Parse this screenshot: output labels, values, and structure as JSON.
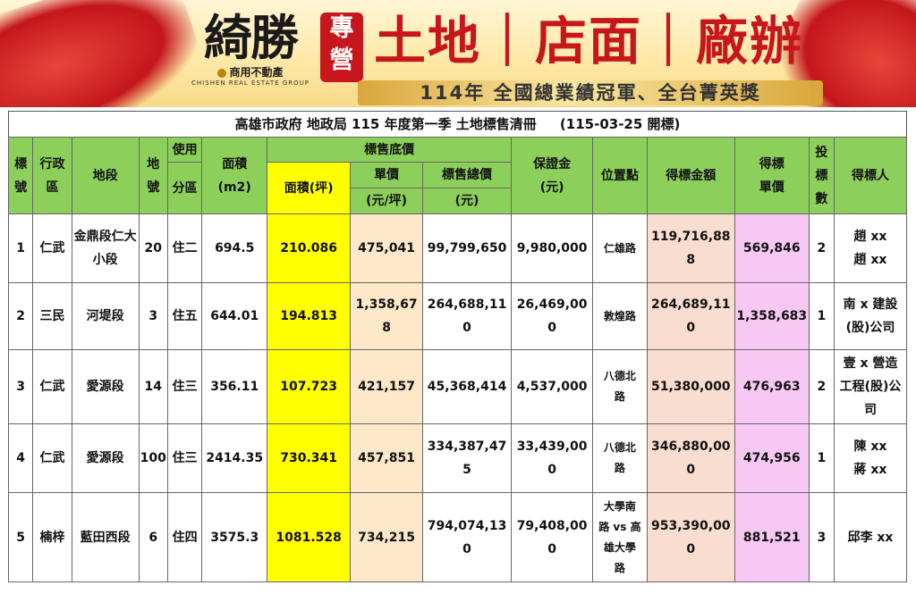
{
  "banner": {
    "logo_text": "綺勝",
    "logo_sub": "商用不動產",
    "logo_eng": "CHISHEN REAL ESTATE GROUP",
    "badge": "專營",
    "headline": "土地｜店面｜廠辦",
    "slogan": "114年 全國總業績冠軍、全台菁英獎",
    "colors": {
      "brand_red": "#c8161d",
      "gold": "#d9a63a"
    }
  },
  "table": {
    "title": "高雄市政府 地政局 115 年度第一季 土地標售清冊     (115-03-25 開標)",
    "headers": {
      "lot_no": "標號",
      "district": "行政區",
      "section": "地段",
      "land_no": "地號",
      "zoning_top": "使用",
      "zoning_bottom": "分區",
      "area_label": "面積",
      "area_unit": "(m2)",
      "reserve_group": "標售底價",
      "ping_area": "面積(坪)",
      "unit_price_label": "單價",
      "unit_price_unit": "(元/坪)",
      "total_label": "標售總價",
      "total_unit": "(元)",
      "deposit_label": "保證金",
      "deposit_unit": "(元)",
      "location": "位置點",
      "winning_amount": "得標金額",
      "winning_unit_top": "得標",
      "winning_unit_bottom": "單價",
      "bids_top": "投",
      "bids_mid": "標",
      "bids_bottom": "數",
      "winner": "得標人"
    },
    "rows": [
      {
        "no": "1",
        "district": "仁武",
        "section": "金鼎段仁大小段",
        "land_no": "20",
        "zoning": "住二",
        "area_m2": "694.5",
        "area_ping": "210.086",
        "unit_price": "475,041",
        "total_price": "99,799,650",
        "deposit": "9,980,000",
        "location": "仁雄路",
        "winning_amount": "119,716,888",
        "winning_unit_price": "569,846",
        "bids": "2",
        "winner_l1": "趙 xx",
        "winner_l2": "趙 xx"
      },
      {
        "no": "2",
        "district": "三民",
        "section": "河堤段",
        "land_no": "3",
        "zoning": "住五",
        "area_m2": "644.01",
        "area_ping": "194.813",
        "unit_price": "1,358,678",
        "total_price": "264,688,110",
        "deposit": "26,469,000",
        "location": "敦煌路",
        "winning_amount": "264,689,110",
        "winning_unit_price": "1,358,683",
        "bids": "1",
        "winner_l1": "南 x 建設",
        "winner_l2": "(股)公司"
      },
      {
        "no": "3",
        "district": "仁武",
        "section": "愛源段",
        "land_no": "14",
        "zoning": "住三",
        "area_m2": "356.11",
        "area_ping": "107.723",
        "unit_price": "421,157",
        "total_price": "45,368,414",
        "deposit": "4,537,000",
        "location_l1": "八德北",
        "location_l2": "路",
        "winning_amount": "51,380,000",
        "winning_unit_price": "476,963",
        "bids": "2",
        "winner_l1": "壹 x 營造",
        "winner_l2": "工程(股)公",
        "winner_l3": "司"
      },
      {
        "no": "4",
        "district": "仁武",
        "section": "愛源段",
        "land_no": "100",
        "zoning": "住三",
        "area_m2": "2414.35",
        "area_ping": "730.341",
        "unit_price": "457,851",
        "total_price": "334,387,475",
        "deposit": "33,439,000",
        "location_l1": "八德北",
        "location_l2": "路",
        "winning_amount": "346,880,000",
        "winning_unit_price": "474,956",
        "bids": "1",
        "winner_l1": "陳 xx",
        "winner_l2": "蔣 xx"
      },
      {
        "no": "5",
        "district": "楠梓",
        "section": "藍田西段",
        "land_no": "6",
        "zoning": "住四",
        "area_m2": "3575.3",
        "area_ping": "1081.528",
        "unit_price": "734,215",
        "total_price": "794,074,130",
        "deposit": "79,408,000",
        "location_l1": "大學南",
        "location_l2": "路 vs 高",
        "location_l3": "雄大學",
        "location_l4": "路",
        "winning_amount": "953,390,000",
        "winning_unit_price": "881,521",
        "bids": "3",
        "winner_l1": "邱李 xx"
      }
    ],
    "colors": {
      "header_green": "#8ccf5a",
      "ping_yellow": "#ffff00",
      "price_beige": "#fde9c9",
      "winning_salmon": "#f9ddd0",
      "winning_unit_pink": "#f8c8f4"
    }
  }
}
